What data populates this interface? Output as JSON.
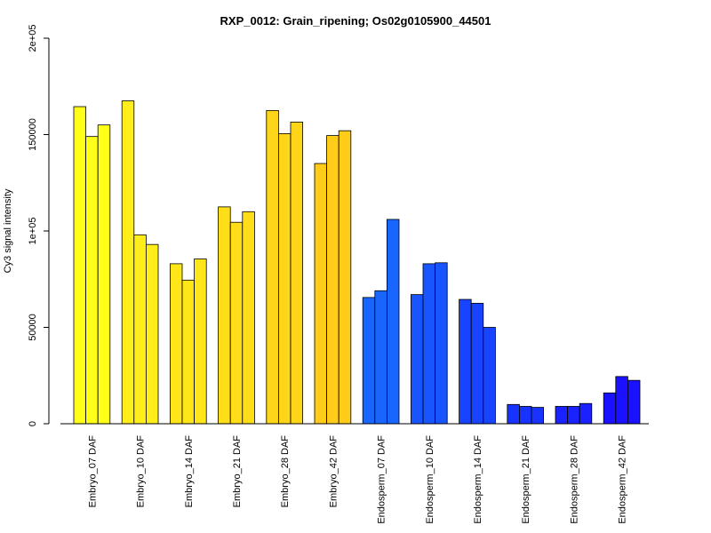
{
  "chart_data": {
    "type": "bar",
    "title": "RXP_0012: Grain_ripening; Os02g0105900_44501",
    "xlabel": "",
    "ylabel": "Cy3 signal intensity",
    "ylim": [
      0,
      200000
    ],
    "yticks": [
      0,
      50000,
      100000,
      150000,
      200000
    ],
    "ytick_labels": [
      "0",
      "50000",
      "1e+05",
      "150000",
      "2e+05"
    ],
    "grid": false,
    "categories": [
      {
        "label": "Embryo_07 DAF",
        "color": "#FFFF19",
        "values": [
          164500,
          149000,
          155000
        ]
      },
      {
        "label": "Embryo_10 DAF",
        "color": "#FFEE19",
        "values": [
          167500,
          98000,
          93000
        ]
      },
      {
        "label": "Embryo_14 DAF",
        "color": "#FFE619",
        "values": [
          83000,
          74500,
          85500
        ]
      },
      {
        "label": "Embryo_21 DAF",
        "color": "#FFDD19",
        "values": [
          112500,
          104500,
          110000
        ]
      },
      {
        "label": "Embryo_28 DAF",
        "color": "#FFD519",
        "values": [
          162500,
          150500,
          156500
        ]
      },
      {
        "label": "Embryo_42 DAF",
        "color": "#FFCC19",
        "values": [
          135000,
          149500,
          152000
        ]
      },
      {
        "label": "Endosperm_07 DAF",
        "color": "#1966FF",
        "values": [
          65500,
          69000,
          106000
        ]
      },
      {
        "label": "Endosperm_10 DAF",
        "color": "#1955FF",
        "values": [
          67000,
          83000,
          83500
        ]
      },
      {
        "label": "Endosperm_14 DAF",
        "color": "#1944FF",
        "values": [
          64500,
          62500,
          50000
        ]
      },
      {
        "label": "Endosperm_21 DAF",
        "color": "#1933FF",
        "values": [
          10000,
          9000,
          8500
        ]
      },
      {
        "label": "Endosperm_28 DAF",
        "color": "#1922FF",
        "values": [
          9000,
          9000,
          10500
        ]
      },
      {
        "label": "Endosperm_42 DAF",
        "color": "#1911FF",
        "values": [
          16000,
          24500,
          22500
        ]
      }
    ]
  }
}
